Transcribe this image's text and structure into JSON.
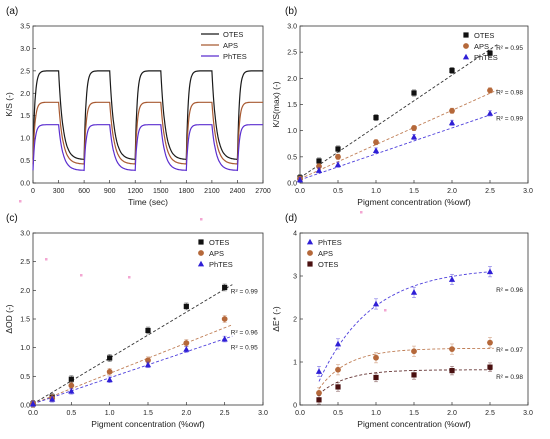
{
  "chart_data": [
    {
      "panel": "(a)",
      "type": "line",
      "xlabel": "Time (sec)",
      "ylabel": "K/S (-)",
      "xlim": [
        0,
        2700
      ],
      "ylim": [
        0,
        3.5
      ],
      "xticks": [
        0,
        300,
        600,
        900,
        1200,
        1500,
        1800,
        2100,
        2400,
        2700
      ],
      "yticks": [
        0.0,
        0.5,
        1.0,
        1.5,
        2.0,
        2.5,
        3.0,
        3.5
      ],
      "legend_position": "top-right",
      "series": [
        {
          "name": "OTES",
          "color": "#1a1a1a",
          "high": 2.5,
          "low": 0.52
        },
        {
          "name": "APS",
          "color": "#a85a32",
          "high": 1.8,
          "low": 0.42
        },
        {
          "name": "PhTES",
          "color": "#5b2ecf",
          "high": 1.3,
          "low": 0.28
        }
      ],
      "cycle": {
        "step_times": [
          0,
          300,
          600,
          900,
          1200,
          1500,
          1800,
          2100,
          2400
        ]
      }
    },
    {
      "panel": "(b)",
      "type": "scatter",
      "xlabel": "Pigment concentration (%owf)",
      "ylabel": "K/S(max) (-)",
      "xlim": [
        0,
        3.0
      ],
      "ylim": [
        0,
        3.0
      ],
      "xticks": [
        0.0,
        0.5,
        1.0,
        1.5,
        2.0,
        2.5,
        3.0
      ],
      "yticks": [
        0.0,
        0.5,
        1.0,
        1.5,
        2.0,
        2.5,
        3.0
      ],
      "legend_position": "top-right",
      "x": [
        0,
        0.25,
        0.5,
        1.0,
        1.5,
        2.0,
        2.5
      ],
      "series": [
        {
          "name": "OTES",
          "marker": "square",
          "color": "#111111",
          "values": [
            0.1,
            0.42,
            0.65,
            1.25,
            1.72,
            2.15,
            2.48
          ],
          "err": 0.06,
          "fit": "linear",
          "fit_end": 2.65,
          "r2": "R² = 0.95",
          "r2_at": 2.6
        },
        {
          "name": "APS",
          "marker": "circle",
          "color": "#b5683a",
          "values": [
            0.08,
            0.32,
            0.5,
            0.78,
            1.05,
            1.38,
            1.77
          ],
          "err": 0.05,
          "fit": "linear",
          "fit_end": 1.78,
          "r2": "R² = 0.98",
          "r2_at": 1.75
        },
        {
          "name": "PhTES",
          "marker": "triangle",
          "color": "#2f1fd6",
          "values": [
            0.06,
            0.24,
            0.35,
            0.62,
            0.88,
            1.15,
            1.33
          ],
          "err": 0.05,
          "fit": "linear",
          "fit_end": 1.35,
          "r2": "R² = 0.99",
          "r2_at": 1.25
        }
      ]
    },
    {
      "panel": "(c)",
      "type": "scatter",
      "xlabel": "Pigment concentration (%owf)",
      "ylabel": "ΔOD (-)",
      "xlim": [
        0,
        3.0
      ],
      "ylim": [
        0,
        3.0
      ],
      "xticks": [
        0.0,
        0.5,
        1.0,
        1.5,
        2.0,
        2.5,
        3.0
      ],
      "yticks": [
        0.0,
        0.5,
        1.0,
        1.5,
        2.0,
        2.5,
        3.0
      ],
      "legend_position": "top-right",
      "x": [
        0,
        0.25,
        0.5,
        1.0,
        1.5,
        2.0,
        2.5
      ],
      "series": [
        {
          "name": "OTES",
          "marker": "square",
          "color": "#111111",
          "values": [
            0.02,
            0.14,
            0.45,
            0.82,
            1.3,
            1.72,
            2.05
          ],
          "err": 0.06,
          "fit": "linear",
          "fit_end": 2.1,
          "r2": "R² = 0.99",
          "r2_at": 2.0
        },
        {
          "name": "APS",
          "marker": "circle",
          "color": "#b5683a",
          "values": [
            0.02,
            0.12,
            0.34,
            0.58,
            0.78,
            1.08,
            1.5
          ],
          "err": 0.06,
          "fit": "linear",
          "fit_end": 1.4,
          "r2": "R² = 0.96",
          "r2_at": 1.28
        },
        {
          "name": "PhTES",
          "marker": "triangle",
          "color": "#2f1fd6",
          "values": [
            0.02,
            0.1,
            0.24,
            0.44,
            0.7,
            0.97,
            1.15
          ],
          "err": 0.05,
          "fit": "linear",
          "fit_end": 1.2,
          "r2": "R² = 0.95",
          "r2_at": 1.02
        }
      ]
    },
    {
      "panel": "(d)",
      "type": "scatter",
      "xlabel": "Pigment concentration (%owf)",
      "ylabel": "ΔE* (-)",
      "xlim": [
        0,
        3.0
      ],
      "ylim": [
        0,
        4
      ],
      "xticks": [
        0.0,
        0.5,
        1.0,
        1.5,
        2.0,
        2.5,
        3.0
      ],
      "yticks": [
        0,
        1,
        2,
        3,
        4
      ],
      "legend_position": "top-left",
      "x": [
        0.25,
        0.5,
        1.0,
        1.5,
        2.0,
        2.5
      ],
      "series": [
        {
          "name": "PhTES",
          "marker": "triangle",
          "color": "#2f1fd6",
          "values": [
            0.78,
            1.42,
            2.35,
            2.62,
            2.92,
            3.1
          ],
          "err": 0.12,
          "fit": "exp",
          "plateau": 3.2,
          "rate": 1.45,
          "r2": "R² = 0.96",
          "r2_at": 2.7
        },
        {
          "name": "APS",
          "marker": "circle",
          "color": "#b5683a",
          "values": [
            0.28,
            0.82,
            1.1,
            1.25,
            1.3,
            1.45
          ],
          "err": 0.12,
          "fit": "exp",
          "plateau": 1.32,
          "rate": 2.6,
          "r2": "R² = 0.97",
          "r2_at": 1.3
        },
        {
          "name": "OTES",
          "marker": "square",
          "color": "#4a1010",
          "values": [
            0.12,
            0.42,
            0.64,
            0.7,
            0.8,
            0.88
          ],
          "err": 0.1,
          "fit": "exp",
          "plateau": 0.82,
          "rate": 2.8,
          "r2": "R² = 0.98",
          "r2_at": 0.68
        }
      ]
    }
  ]
}
